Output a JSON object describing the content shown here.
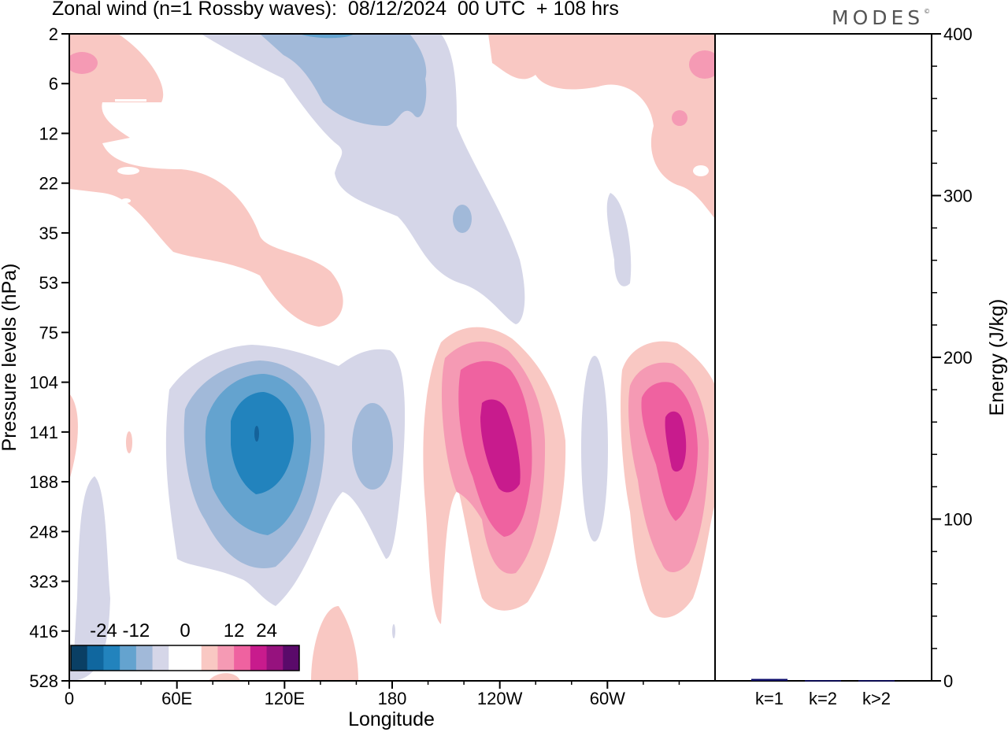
{
  "header": {
    "title": "Zonal wind (n=1 Rossby waves):  08/12/2024  00 UTC  + 108 hrs",
    "logo": "MODES"
  },
  "colors": {
    "neg3": "#2283bd",
    "neg2": "#64a3cf",
    "neg1": "#a1b9d9",
    "neg0": "#d5d6e8",
    "pos0": "#f9c8c3",
    "pos1": "#f59ab4",
    "pos2": "#ef62a0",
    "pos3": "#c81b8d",
    "bar": "#0d0d6b"
  },
  "chart_data": [
    {
      "type": "heatmap",
      "xlabel": "Longitude",
      "ylabel": "Pressure levels (hPa)",
      "x_ticks": [
        "0",
        "60E",
        "120E",
        "180",
        "120W",
        "60W"
      ],
      "y_ticks": [
        "2",
        "6",
        "12",
        "22",
        "35",
        "53",
        "75",
        "104",
        "141",
        "188",
        "248",
        "323",
        "416",
        "528"
      ],
      "colorbar": {
        "labels": [
          "-24",
          "-12",
          "0",
          "12",
          "24"
        ],
        "colors": [
          "#0a3f64",
          "#10679f",
          "#2283bd",
          "#64a3cf",
          "#a1b9d9",
          "#d5d6e8",
          "#ffffff",
          "#ffffff",
          "#f9c8c3",
          "#f59ab4",
          "#ef62a0",
          "#c81b8d",
          "#96127e",
          "#5a0a6a"
        ]
      },
      "features": [
        {
          "sign": "negative",
          "peak": -22,
          "lon": 103,
          "level": 141
        },
        {
          "sign": "negative",
          "peak": -10,
          "lon": 165,
          "level": 141
        },
        {
          "sign": "negative",
          "peak": -8,
          "lon": 140,
          "level": 6
        },
        {
          "sign": "positive",
          "peak": 22,
          "lon": 238,
          "level": 141
        },
        {
          "sign": "positive",
          "peak": 22,
          "lon": 315,
          "level": 141
        },
        {
          "sign": "positive",
          "peak": 6,
          "lon": 5,
          "level": 12
        },
        {
          "sign": "positive",
          "peak": 8,
          "lon": 330,
          "level": 6
        }
      ]
    },
    {
      "type": "bar",
      "ylabel": "Energy (J/kg)",
      "ylim": [
        0,
        400
      ],
      "y_ticks": [
        "0",
        "100",
        "200",
        "300",
        "400"
      ],
      "categories": [
        "k=1",
        "k=2",
        "k>2"
      ],
      "values": [
        1.2,
        0.4,
        0.4
      ]
    }
  ]
}
